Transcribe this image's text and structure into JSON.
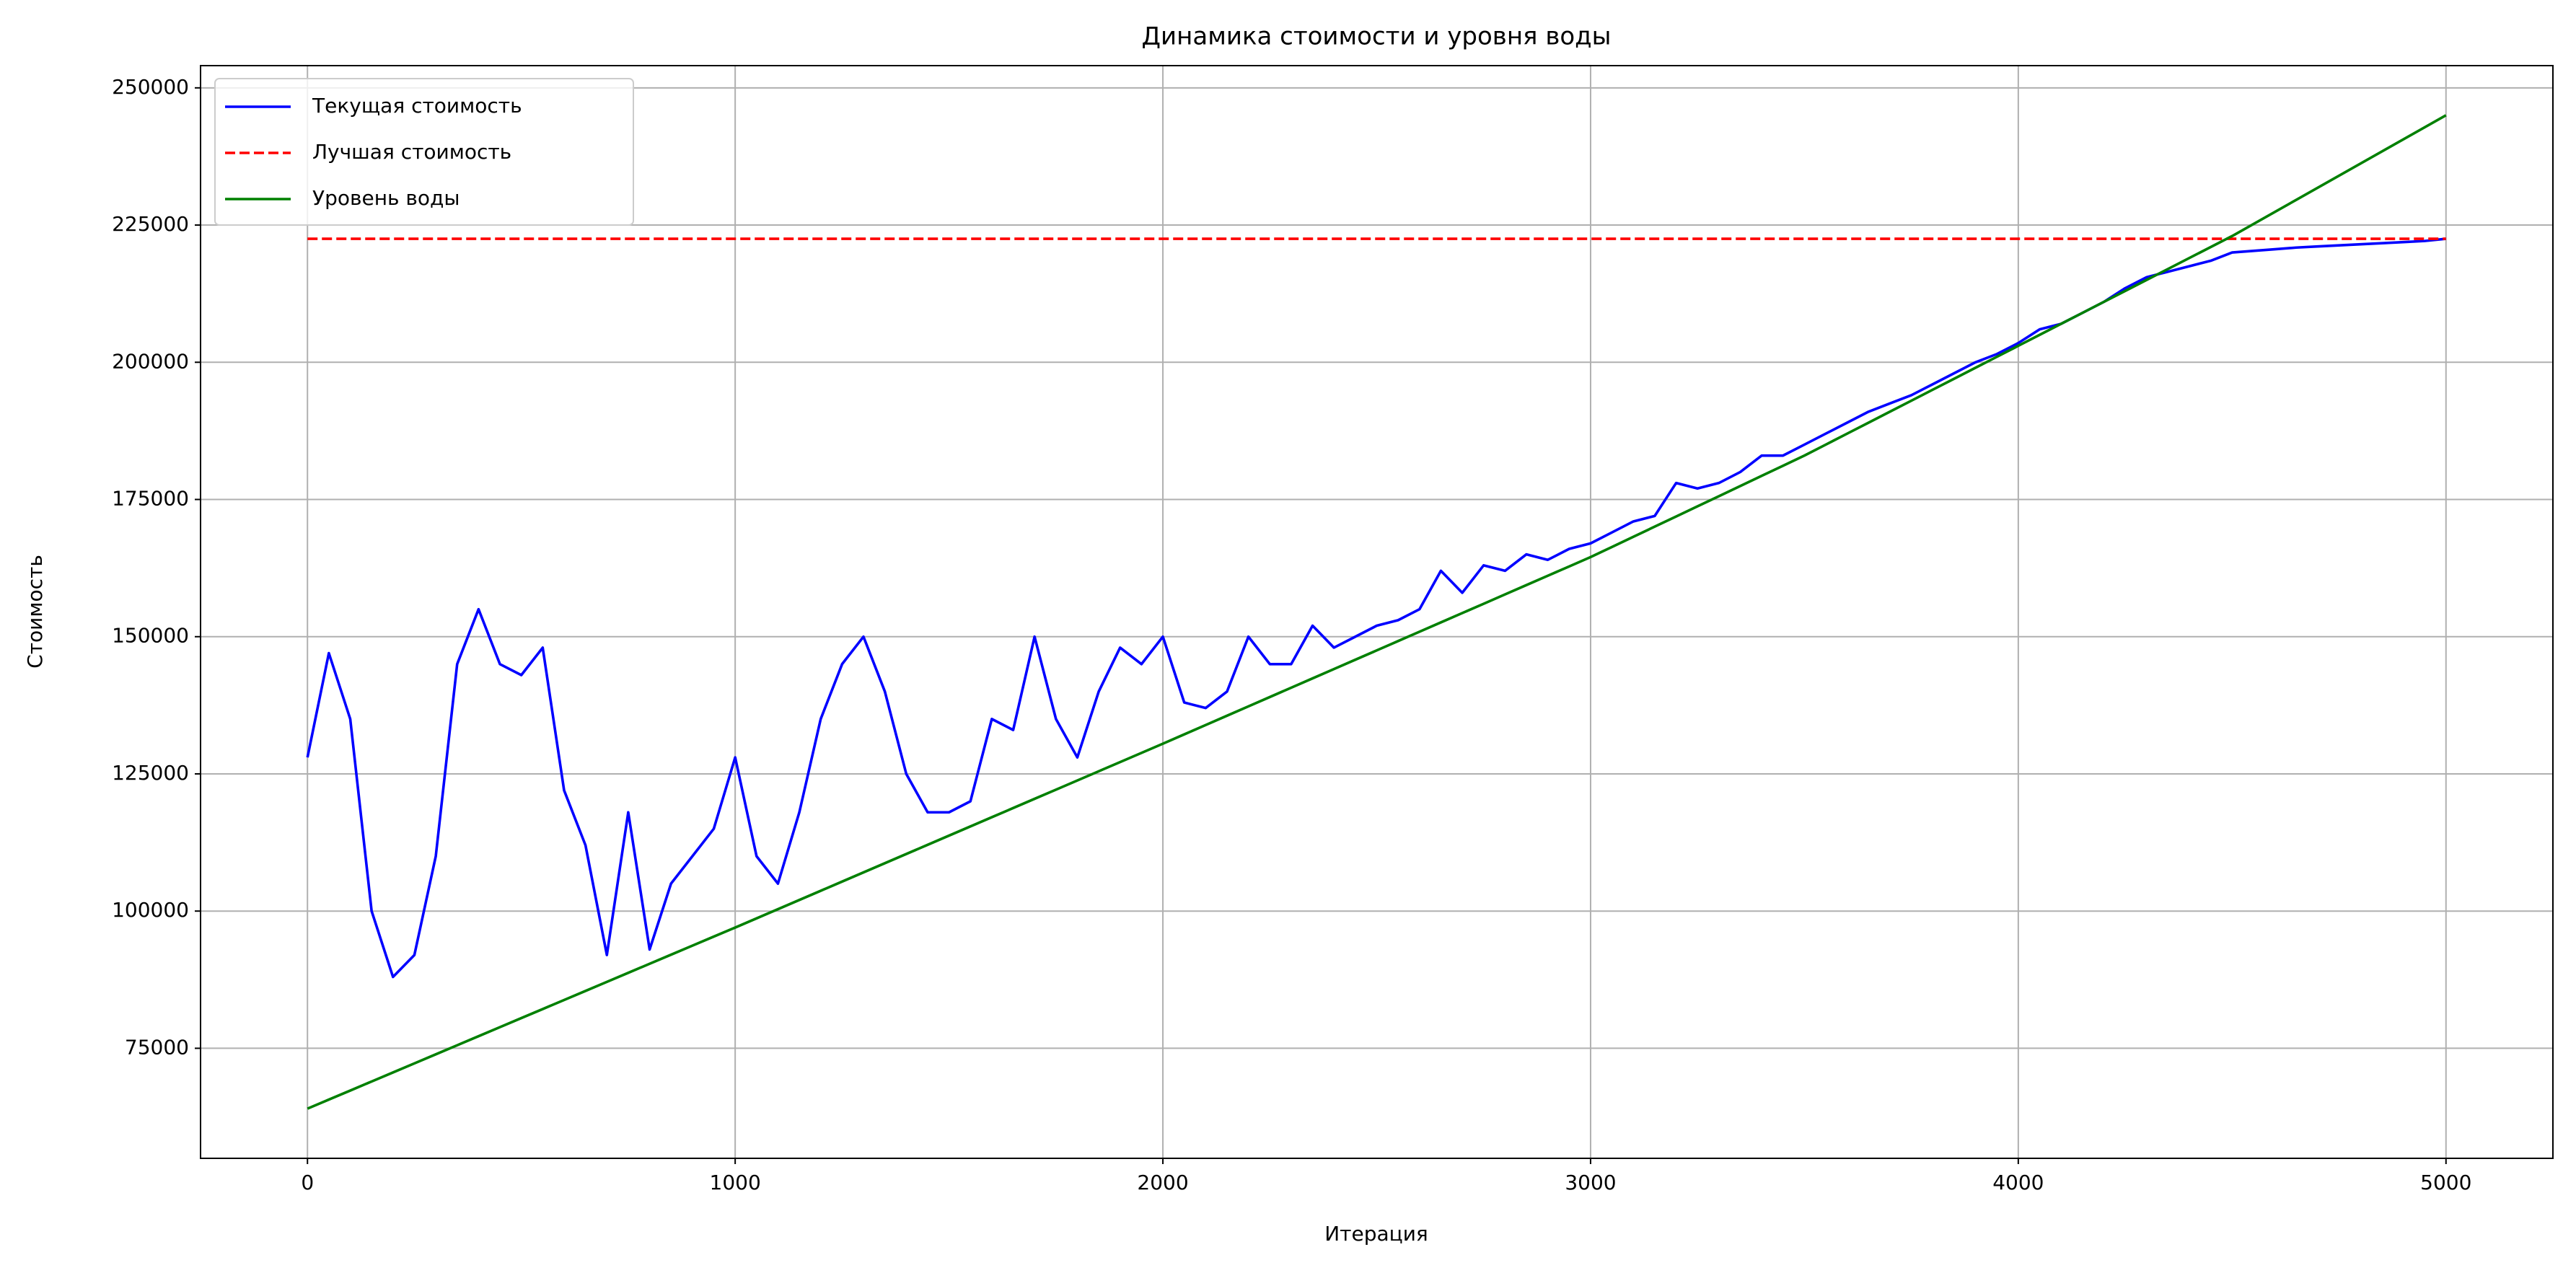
{
  "chart_data": {
    "type": "line",
    "title": "Динамика стоимости и уровня воды",
    "xlabel": "Итерация",
    "ylabel": "Стоимость",
    "x": [
      0,
      50,
      100,
      150,
      200,
      250,
      300,
      350,
      400,
      450,
      500,
      550,
      600,
      650,
      700,
      750,
      800,
      850,
      900,
      950,
      1000,
      1050,
      1100,
      1150,
      1200,
      1250,
      1300,
      1350,
      1400,
      1450,
      1500,
      1550,
      1600,
      1650,
      1700,
      1750,
      1800,
      1850,
      1900,
      1950,
      2000,
      2050,
      2100,
      2150,
      2200,
      2250,
      2300,
      2350,
      2400,
      2450,
      2500,
      2550,
      2600,
      2650,
      2700,
      2750,
      2800,
      2850,
      2900,
      2950,
      3000,
      3050,
      3100,
      3150,
      3200,
      3250,
      3300,
      3350,
      3400,
      3450,
      3500,
      3550,
      3600,
      3650,
      3700,
      3750,
      3800,
      3850,
      3900,
      3950,
      4000,
      4050,
      4100,
      4150,
      4200,
      4250,
      4300,
      4350,
      4400,
      4450,
      4500,
      4550,
      4600,
      4650,
      4700,
      4750,
      4800,
      4850,
      4900,
      4950,
      5000
    ],
    "series": [
      {
        "name": "Текущая стоимость",
        "color": "#0000ff",
        "linestyle": "solid",
        "values": [
          128000,
          147000,
          135000,
          100000,
          88000,
          92000,
          110000,
          145000,
          155000,
          145000,
          143000,
          148000,
          122000,
          112000,
          92000,
          118000,
          93000,
          105000,
          110000,
          115000,
          128000,
          110000,
          105000,
          118000,
          135000,
          145000,
          150000,
          140000,
          125000,
          118000,
          118000,
          120000,
          135000,
          133000,
          150000,
          135000,
          128000,
          140000,
          148000,
          145000,
          150000,
          138000,
          137000,
          140000,
          150000,
          145000,
          145000,
          152000,
          148000,
          150000,
          152000,
          153000,
          155000,
          162000,
          158000,
          163000,
          162000,
          165000,
          164000,
          166000,
          167000,
          169000,
          171000,
          172000,
          178000,
          177000,
          178000,
          180000,
          183000,
          183000,
          185000,
          187000,
          189000,
          191000,
          192500,
          194000,
          196000,
          198000,
          200000,
          201500,
          203500,
          206000,
          207000,
          209000,
          211000,
          213500,
          215500,
          216500,
          217500,
          218500,
          220000,
          220300,
          220600,
          220900,
          221100,
          221300,
          221500,
          221700,
          221900,
          222100,
          222500
        ]
      },
      {
        "name": "Лучшая стоимость",
        "color": "#ff0000",
        "linestyle": "dashed",
        "values": [
          222500,
          222500,
          222500,
          222500,
          222500,
          222500,
          222500,
          222500,
          222500,
          222500,
          222500,
          222500,
          222500,
          222500,
          222500,
          222500,
          222500,
          222500,
          222500,
          222500,
          222500,
          222500,
          222500,
          222500,
          222500,
          222500,
          222500,
          222500,
          222500,
          222500,
          222500,
          222500,
          222500,
          222500,
          222500,
          222500,
          222500,
          222500,
          222500,
          222500,
          222500,
          222500,
          222500,
          222500,
          222500,
          222500,
          222500,
          222500,
          222500,
          222500,
          222500,
          222500,
          222500,
          222500,
          222500,
          222500,
          222500,
          222500,
          222500,
          222500,
          222500,
          222500,
          222500,
          222500,
          222500,
          222500,
          222500,
          222500,
          222500,
          222500,
          222500,
          222500,
          222500,
          222500,
          222500,
          222500,
          222500,
          222500,
          222500,
          222500,
          222500,
          222500,
          222500,
          222500,
          222500,
          222500,
          222500,
          222500,
          222500,
          222500,
          222500,
          222500,
          222500,
          222500,
          222500,
          222500,
          222500,
          222500,
          222500,
          222500,
          222500
        ]
      },
      {
        "name": "Уровень воды",
        "color": "#008000",
        "linestyle": "solid",
        "values": [
          64000,
          65650,
          67300,
          68950,
          70600,
          72250,
          73900,
          75550,
          77200,
          78850,
          80500,
          82150,
          83800,
          85450,
          87100,
          88750,
          90400,
          92050,
          93700,
          95350,
          97000,
          98675,
          100350,
          102025,
          103700,
          105375,
          107050,
          108725,
          110400,
          112075,
          113750,
          115425,
          117100,
          118775,
          120450,
          122125,
          123800,
          125475,
          127150,
          128825,
          130500,
          132200,
          133900,
          135600,
          137300,
          139000,
          140700,
          142400,
          144100,
          145800,
          147500,
          149200,
          150900,
          152600,
          154300,
          156000,
          157700,
          159400,
          161100,
          162800,
          164500,
          166350,
          168200,
          170050,
          171900,
          173750,
          175600,
          177450,
          179300,
          181150,
          183000,
          185000,
          187000,
          189000,
          191000,
          193000,
          195000,
          197000,
          199000,
          201000,
          203000,
          205000,
          207000,
          209000,
          211000,
          213000,
          215000,
          217000,
          219000,
          221000,
          223000,
          225200,
          227400,
          229600,
          231800,
          234000,
          236200,
          238400,
          240600,
          242800,
          245000
        ]
      }
    ],
    "xlim": [
      -250,
      5250
    ],
    "ylim": [
      54950,
      254050
    ],
    "xticks": [
      0,
      1000,
      2000,
      3000,
      4000,
      5000
    ],
    "yticks": [
      75000,
      100000,
      125000,
      150000,
      175000,
      200000,
      225000,
      250000
    ],
    "grid": true,
    "legend": "upper left"
  }
}
